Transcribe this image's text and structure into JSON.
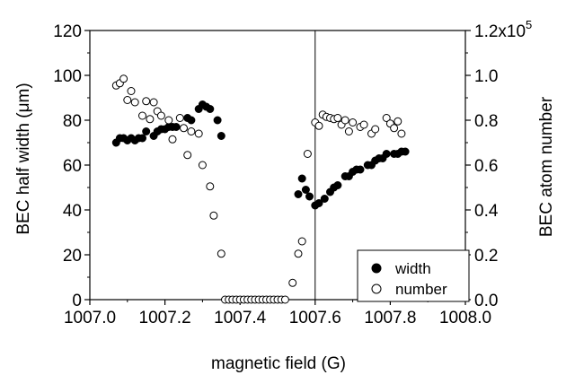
{
  "chart_data": {
    "type": "scatter",
    "xlabel": "magnetic field (G)",
    "ylabel_left": "BEC half width (μm)",
    "ylabel_right": "BEC atom number",
    "xlim": [
      1007.0,
      1008.0
    ],
    "ylim_left": [
      0,
      120
    ],
    "ylim_right": [
      0,
      120000
    ],
    "x_ticks": [
      1007.0,
      1007.2,
      1007.4,
      1007.6,
      1007.8,
      1008.0
    ],
    "x_tick_labels": [
      "1007.0",
      "1007.2",
      "1007.4",
      "1007.6",
      "1007.8",
      "1008.0"
    ],
    "y_left_ticks": [
      0,
      20,
      40,
      60,
      80,
      100,
      120
    ],
    "y_left_tick_labels": [
      "0",
      "20",
      "40",
      "60",
      "80",
      "100",
      "120"
    ],
    "y_right_ticks": [
      0,
      20000,
      40000,
      60000,
      80000,
      100000,
      120000
    ],
    "y_right_tick_labels": [
      "0.0",
      "0.2",
      "0.4",
      "0.6",
      "0.8",
      "1.0",
      "1.2x10"
    ],
    "y_right_exponent": "5",
    "vertical_line_x": 1007.6,
    "legend_position": "bottom-right",
    "series": [
      {
        "name": "width",
        "marker": "filled-circle",
        "axis": "left",
        "points": [
          [
            1007.07,
            70
          ],
          [
            1007.08,
            72
          ],
          [
            1007.09,
            72
          ],
          [
            1007.1,
            71
          ],
          [
            1007.11,
            72
          ],
          [
            1007.12,
            71
          ],
          [
            1007.13,
            72
          ],
          [
            1007.14,
            72
          ],
          [
            1007.15,
            75
          ],
          [
            1007.17,
            73
          ],
          [
            1007.18,
            75
          ],
          [
            1007.19,
            76
          ],
          [
            1007.2,
            76
          ],
          [
            1007.21,
            77
          ],
          [
            1007.22,
            77
          ],
          [
            1007.23,
            77
          ],
          [
            1007.26,
            81
          ],
          [
            1007.27,
            80
          ],
          [
            1007.29,
            85
          ],
          [
            1007.3,
            87
          ],
          [
            1007.31,
            86
          ],
          [
            1007.32,
            85
          ],
          [
            1007.34,
            80
          ],
          [
            1007.35,
            73
          ],
          [
            1007.555,
            47
          ],
          [
            1007.565,
            54
          ],
          [
            1007.575,
            49
          ],
          [
            1007.585,
            46
          ],
          [
            1007.6,
            42
          ],
          [
            1007.61,
            43
          ],
          [
            1007.625,
            45
          ],
          [
            1007.64,
            48
          ],
          [
            1007.65,
            50
          ],
          [
            1007.66,
            51
          ],
          [
            1007.68,
            55
          ],
          [
            1007.69,
            55
          ],
          [
            1007.7,
            57
          ],
          [
            1007.71,
            58
          ],
          [
            1007.72,
            58
          ],
          [
            1007.74,
            60
          ],
          [
            1007.75,
            60
          ],
          [
            1007.76,
            62
          ],
          [
            1007.77,
            63
          ],
          [
            1007.78,
            63
          ],
          [
            1007.79,
            65
          ],
          [
            1007.81,
            65
          ],
          [
            1007.82,
            65
          ],
          [
            1007.83,
            66
          ],
          [
            1007.84,
            66
          ]
        ]
      },
      {
        "name": "number",
        "marker": "open-circle",
        "axis": "right",
        "points": [
          [
            1007.07,
            95500
          ],
          [
            1007.08,
            96500
          ],
          [
            1007.09,
            98500
          ],
          [
            1007.1,
            89000
          ],
          [
            1007.11,
            93000
          ],
          [
            1007.12,
            88000
          ],
          [
            1007.14,
            82000
          ],
          [
            1007.15,
            88500
          ],
          [
            1007.16,
            80500
          ],
          [
            1007.17,
            88000
          ],
          [
            1007.18,
            84000
          ],
          [
            1007.19,
            82000
          ],
          [
            1007.21,
            80000
          ],
          [
            1007.22,
            71500
          ],
          [
            1007.24,
            81000
          ],
          [
            1007.25,
            76500
          ],
          [
            1007.26,
            64500
          ],
          [
            1007.27,
            75000
          ],
          [
            1007.29,
            74000
          ],
          [
            1007.3,
            60000
          ],
          [
            1007.32,
            50500
          ],
          [
            1007.33,
            37500
          ],
          [
            1007.35,
            20500
          ],
          [
            1007.36,
            0
          ],
          [
            1007.37,
            0
          ],
          [
            1007.38,
            0
          ],
          [
            1007.39,
            0
          ],
          [
            1007.4,
            0
          ],
          [
            1007.41,
            0
          ],
          [
            1007.42,
            0
          ],
          [
            1007.43,
            0
          ],
          [
            1007.44,
            0
          ],
          [
            1007.45,
            0
          ],
          [
            1007.46,
            0
          ],
          [
            1007.47,
            0
          ],
          [
            1007.48,
            0
          ],
          [
            1007.49,
            0
          ],
          [
            1007.5,
            0
          ],
          [
            1007.51,
            0
          ],
          [
            1007.52,
            0
          ],
          [
            1007.54,
            7500
          ],
          [
            1007.555,
            20500
          ],
          [
            1007.565,
            26000
          ],
          [
            1007.58,
            65000
          ],
          [
            1007.6,
            79000
          ],
          [
            1007.61,
            77500
          ],
          [
            1007.62,
            82500
          ],
          [
            1007.63,
            81500
          ],
          [
            1007.64,
            81000
          ],
          [
            1007.65,
            80500
          ],
          [
            1007.66,
            81000
          ],
          [
            1007.67,
            78000
          ],
          [
            1007.68,
            80000
          ],
          [
            1007.69,
            75000
          ],
          [
            1007.7,
            79000
          ],
          [
            1007.72,
            77000
          ],
          [
            1007.73,
            78000
          ],
          [
            1007.75,
            74000
          ],
          [
            1007.76,
            76000
          ],
          [
            1007.79,
            81000
          ],
          [
            1007.8,
            78500
          ],
          [
            1007.81,
            76500
          ],
          [
            1007.82,
            79500
          ],
          [
            1007.83,
            74000
          ]
        ]
      }
    ]
  }
}
